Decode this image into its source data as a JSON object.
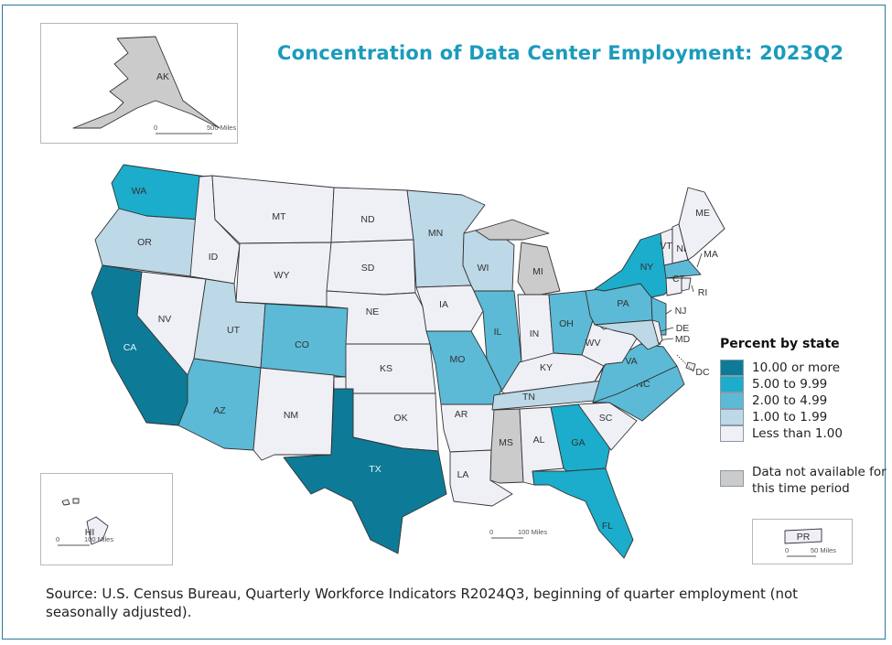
{
  "title": "Concentration of Data Center Employment: 2023Q2",
  "legend": {
    "title": "Percent by state",
    "classes": [
      {
        "label": "10.00 or more",
        "color": "#0d7b97"
      },
      {
        "label": "5.00 to 9.99",
        "color": "#1badcb"
      },
      {
        "label": "2.00 to 4.99",
        "color": "#5cbad6"
      },
      {
        "label": "1.00 to 1.99",
        "color": "#bdd8e7"
      },
      {
        "label": "Less than 1.00",
        "color": "#efeff6"
      }
    ],
    "not_available": {
      "label": "Data not available for this time period",
      "color": "#cbcbcb"
    }
  },
  "scale_bars": {
    "alaska": {
      "zero": "0",
      "label": "500 Miles"
    },
    "hawaii": {
      "zero": "0",
      "label": "100 Miles"
    },
    "conus": {
      "zero": "0",
      "label": "100 Miles"
    },
    "puerto_rico": {
      "zero": "0",
      "label": "50 Miles"
    }
  },
  "states": [
    {
      "abbr": "WA",
      "class": 1
    },
    {
      "abbr": "OR",
      "class": 3
    },
    {
      "abbr": "CA",
      "class": 0
    },
    {
      "abbr": "NV",
      "class": 4
    },
    {
      "abbr": "ID",
      "class": 4
    },
    {
      "abbr": "MT",
      "class": 4
    },
    {
      "abbr": "WY",
      "class": 4
    },
    {
      "abbr": "UT",
      "class": 3
    },
    {
      "abbr": "AZ",
      "class": 2
    },
    {
      "abbr": "CO",
      "class": 2
    },
    {
      "abbr": "NM",
      "class": 4
    },
    {
      "abbr": "ND",
      "class": 4
    },
    {
      "abbr": "SD",
      "class": 4
    },
    {
      "abbr": "NE",
      "class": 4
    },
    {
      "abbr": "KS",
      "class": 4
    },
    {
      "abbr": "OK",
      "class": 4
    },
    {
      "abbr": "TX",
      "class": 0
    },
    {
      "abbr": "MN",
      "class": 3
    },
    {
      "abbr": "WI",
      "class": 3
    },
    {
      "abbr": "IA",
      "class": 4
    },
    {
      "abbr": "MO",
      "class": 2
    },
    {
      "abbr": "AR",
      "class": 4
    },
    {
      "abbr": "LA",
      "class": 4
    },
    {
      "abbr": "IL",
      "class": 2
    },
    {
      "abbr": "MI",
      "class": "na"
    },
    {
      "abbr": "IN",
      "class": 4
    },
    {
      "abbr": "OH",
      "class": 2
    },
    {
      "abbr": "KY",
      "class": 4
    },
    {
      "abbr": "TN",
      "class": 3
    },
    {
      "abbr": "MS",
      "class": "na"
    },
    {
      "abbr": "AL",
      "class": 4
    },
    {
      "abbr": "GA",
      "class": 1
    },
    {
      "abbr": "FL",
      "class": 1
    },
    {
      "abbr": "SC",
      "class": 4
    },
    {
      "abbr": "NC",
      "class": 2
    },
    {
      "abbr": "VA",
      "class": 2
    },
    {
      "abbr": "WV",
      "class": 4
    },
    {
      "abbr": "PA",
      "class": 2
    },
    {
      "abbr": "NY",
      "class": 1
    },
    {
      "abbr": "NJ",
      "class": 2
    },
    {
      "abbr": "MD",
      "class": 3
    },
    {
      "abbr": "DE",
      "class": 4
    },
    {
      "abbr": "DC",
      "class": 4
    },
    {
      "abbr": "VT",
      "class": 4
    },
    {
      "abbr": "NH",
      "class": 4
    },
    {
      "abbr": "ME",
      "class": 4
    },
    {
      "abbr": "MA",
      "class": 2
    },
    {
      "abbr": "CT",
      "class": 4
    },
    {
      "abbr": "RI",
      "class": 4
    },
    {
      "abbr": "AK",
      "class": "na"
    },
    {
      "abbr": "HI",
      "class": 4
    },
    {
      "abbr": "PR",
      "class": 4
    }
  ],
  "source": "Source: U.S. Census Bureau, Quarterly Workforce Indicators R2024Q3, beginning of quarter employment (not seasonally adjusted)."
}
